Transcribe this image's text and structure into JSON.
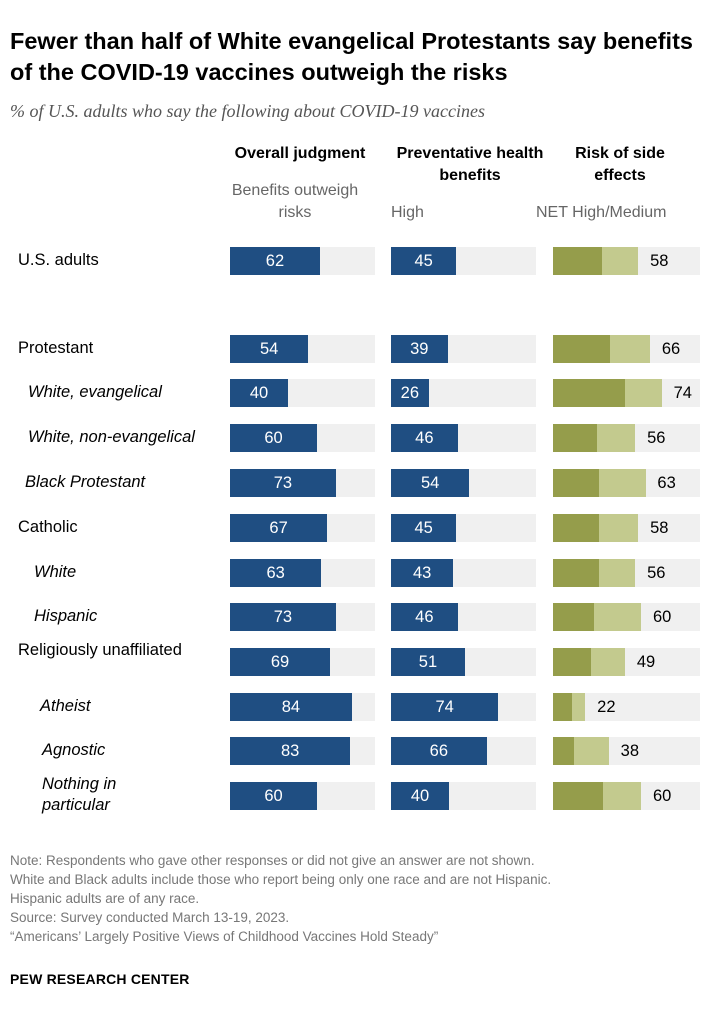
{
  "title": "Fewer than half of White evangelical Protestants say benefits of the COVID-19 vaccines outweigh the risks",
  "subtitle": "% of U.S. adults who say the following about COVID-19 vaccines",
  "chart_data": {
    "type": "bar",
    "columns": [
      {
        "header": "Overall judgment",
        "subheader": "Benefits outweigh risks"
      },
      {
        "header": "Preventative health benefits",
        "subheader": "High"
      },
      {
        "header": "Risk of side effects",
        "subheader": "NET High/Medium"
      }
    ],
    "categories": [
      "U.S. adults",
      "Protestant",
      "White, evangelical",
      "White, non-evangelical",
      "Black Protestant",
      "Catholic",
      "White",
      "Hispanic",
      "Religiously unaffiliated",
      "Atheist",
      "Agnostic",
      "Nothing in particular"
    ],
    "italic": [
      false,
      false,
      true,
      true,
      true,
      false,
      true,
      true,
      false,
      true,
      true,
      true
    ],
    "benefits_outweigh_risks": [
      62,
      54,
      40,
      60,
      73,
      67,
      63,
      73,
      69,
      84,
      83,
      60
    ],
    "preventative_high": [
      45,
      39,
      26,
      46,
      54,
      45,
      43,
      46,
      51,
      74,
      66,
      40
    ],
    "risk_net": [
      58,
      66,
      74,
      56,
      63,
      58,
      56,
      60,
      49,
      22,
      38,
      60
    ],
    "risk_high_est": [
      33,
      39,
      49,
      30,
      31,
      31,
      31,
      28,
      26,
      13,
      14,
      34
    ],
    "risk_medium_est": [
      25,
      27,
      25,
      26,
      32,
      27,
      25,
      32,
      23,
      9,
      24,
      26
    ],
    "xlim": [
      0,
      100
    ],
    "colors": {
      "blue": "#1f4e82",
      "risk_high": "#959d4b",
      "risk_medium": "#c3ca8e",
      "track": "#f0f0f0"
    }
  },
  "notes": [
    "Note: Respondents who gave other responses or did not give an answer are not shown.",
    "White and Black adults include those who report being only one race and are not Hispanic.",
    "Hispanic adults are of any race.",
    "Source: Survey conducted March 13-19, 2023.",
    "“Americans’ Largely Positive Views of Childhood Vaccines Hold Steady”"
  ],
  "brand": "PEW RESEARCH CENTER"
}
